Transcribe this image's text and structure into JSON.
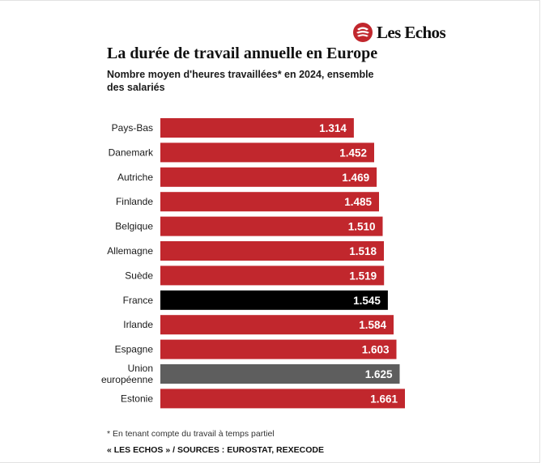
{
  "brand": {
    "name": "Les Echos",
    "colors": {
      "bar": "#c1272d",
      "highlight": "#000000",
      "average": "#5e5e5e",
      "label": "#ffffff"
    }
  },
  "chart_data": {
    "type": "bar",
    "orientation": "horizontal",
    "title": "La durée de travail annuelle en Europe",
    "subtitle": "Nombre moyen d'heures travaillées* en 2024, ensemble des salariés",
    "categories": [
      "Pays-Bas",
      "Danemark",
      "Autriche",
      "Finlande",
      "Belgique",
      "Allemagne",
      "Suède",
      "France",
      "Irlande",
      "Espagne",
      "Union européenne",
      "Estonie"
    ],
    "values": [
      1314,
      1452,
      1469,
      1485,
      1510,
      1518,
      1519,
      1545,
      1584,
      1603,
      1625,
      1661
    ],
    "value_labels": [
      "1.314",
      "1.452",
      "1.469",
      "1.485",
      "1.510",
      "1.518",
      "1.519",
      "1.545",
      "1.584",
      "1.603",
      "1.625",
      "1.661"
    ],
    "bar_styles": [
      "default",
      "default",
      "default",
      "default",
      "default",
      "default",
      "default",
      "highlight",
      "default",
      "default",
      "average",
      "default"
    ],
    "xlim": [
      0,
      1661
    ],
    "grid": false,
    "legend": "none"
  },
  "footnote": "* En tenant compte du travail à temps partiel",
  "source": "« LES ECHOS » / SOURCES : EUROSTAT, REXECODE"
}
